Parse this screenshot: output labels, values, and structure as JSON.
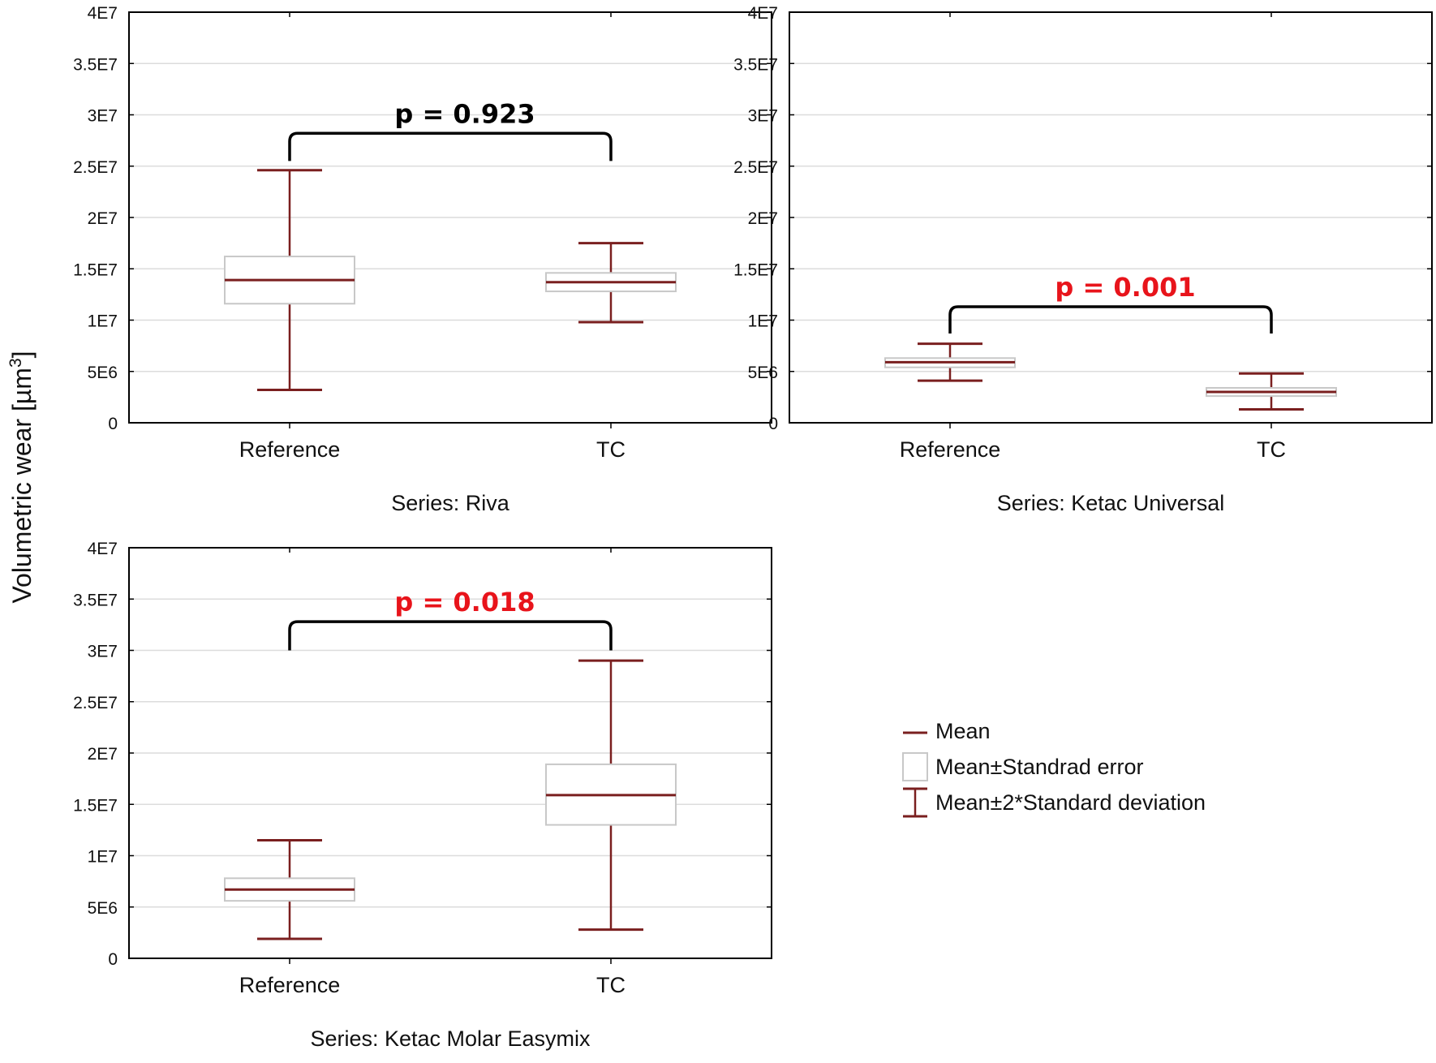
{
  "figure": {
    "ylabel": "Volumetric wear [µm",
    "ylabel_sup": "3",
    "ylabel_end": "]"
  },
  "legend": {
    "items": [
      {
        "label": "Mean",
        "kind": "mean"
      },
      {
        "label": "Mean±Standrad error",
        "kind": "box"
      },
      {
        "label": "Mean±2*Standard deviation",
        "kind": "whisker"
      }
    ]
  },
  "colors": {
    "mean": "#7a1f1f",
    "whisker": "#7a1f1f",
    "box_stroke": "#c8c8c8",
    "p_significant": "#e8141b",
    "p_nonsignificant": "#000000"
  },
  "chart_data": [
    {
      "type": "box",
      "series_label": "Series: Riva",
      "categories": [
        "Reference",
        "TC"
      ],
      "ylim": [
        0,
        40000000
      ],
      "yticks": [
        0,
        5000000,
        10000000,
        15000000,
        20000000,
        25000000,
        30000000,
        35000000,
        40000000
      ],
      "ytick_labels": [
        "0",
        "5E6",
        "1E7",
        "1.5E7",
        "2E7",
        "2.5E7",
        "3E7",
        "3.5E7",
        "4E7"
      ],
      "grid": true,
      "series": [
        {
          "category": "Reference",
          "mean": 13900000,
          "se_low": 11600000,
          "se_high": 16200000,
          "sd2_low": 3200000,
          "sd2_high": 24600000
        },
        {
          "category": "TC",
          "mean": 13700000,
          "se_low": 12800000,
          "se_high": 14600000,
          "sd2_low": 9800000,
          "sd2_high": 17500000
        }
      ],
      "annotation": {
        "text": "p = 0.923",
        "significant": false,
        "bracket_y": 28200000,
        "leg_bottom": 25500000
      }
    },
    {
      "type": "box",
      "series_label": "Series: Ketac Universal",
      "categories": [
        "Reference",
        "TC"
      ],
      "ylim": [
        0,
        40000000
      ],
      "yticks": [
        0,
        5000000,
        10000000,
        15000000,
        20000000,
        25000000,
        30000000,
        35000000,
        40000000
      ],
      "ytick_labels": [
        "0",
        "5E6",
        "1E7",
        "1.5E7",
        "2E7",
        "2.5E7",
        "3E7",
        "3.5E7",
        "4E7"
      ],
      "grid": true,
      "series": [
        {
          "category": "Reference",
          "mean": 5900000,
          "se_low": 5400000,
          "se_high": 6300000,
          "sd2_low": 4100000,
          "sd2_high": 7700000
        },
        {
          "category": "TC",
          "mean": 3000000,
          "se_low": 2600000,
          "se_high": 3400000,
          "sd2_low": 1300000,
          "sd2_high": 4800000
        }
      ],
      "annotation": {
        "text": "p = 0.001",
        "significant": true,
        "bracket_y": 11300000,
        "leg_bottom": 8700000
      }
    },
    {
      "type": "box",
      "series_label": "Series: Ketac Molar Easymix",
      "categories": [
        "Reference",
        "TC"
      ],
      "ylim": [
        0,
        40000000
      ],
      "yticks": [
        0,
        5000000,
        10000000,
        15000000,
        20000000,
        25000000,
        30000000,
        35000000,
        40000000
      ],
      "ytick_labels": [
        "0",
        "5E6",
        "1E7",
        "1.5E7",
        "2E7",
        "2.5E7",
        "3E7",
        "3.5E7",
        "4E7"
      ],
      "grid": true,
      "series": [
        {
          "category": "Reference",
          "mean": 6700000,
          "se_low": 5600000,
          "se_high": 7800000,
          "sd2_low": 1900000,
          "sd2_high": 11500000
        },
        {
          "category": "TC",
          "mean": 15900000,
          "se_low": 13000000,
          "se_high": 18900000,
          "sd2_low": 2800000,
          "sd2_high": 29000000
        }
      ],
      "annotation": {
        "text": "p = 0.018",
        "significant": true,
        "bracket_y": 32800000,
        "leg_bottom": 30000000
      }
    }
  ]
}
